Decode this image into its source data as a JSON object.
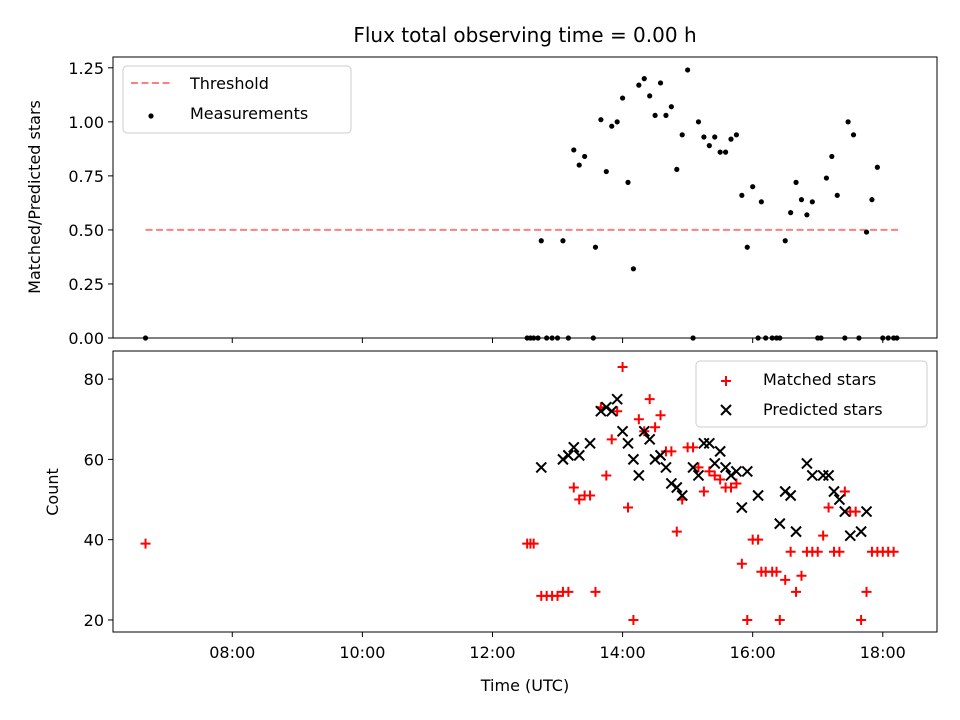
{
  "chart_data": [
    {
      "type": "scatter",
      "title": "Flux total observing time = 0.00 h",
      "xlabel": "",
      "ylabel": "Matched/Predicted stars",
      "ylim": [
        0,
        1.3
      ],
      "yticks": [
        "0.00",
        "0.25",
        "0.50",
        "0.75",
        "1.00",
        "1.25"
      ],
      "legend": {
        "position": "top-left",
        "entries": [
          "Threshold",
          "Measurements"
        ]
      },
      "threshold": {
        "name": "Threshold",
        "y": 0.5,
        "x_start": "06:40",
        "x_end": "18:15",
        "color": "#ff7f7f",
        "style": "dashed"
      },
      "series": [
        {
          "name": "Measurements",
          "color": "#000000",
          "marker": "dot",
          "points": [
            [
              "06:40",
              0.0
            ],
            [
              "12:32",
              0.0
            ],
            [
              "12:35",
              0.0
            ],
            [
              "12:38",
              0.0
            ],
            [
              "12:42",
              0.0
            ],
            [
              "12:45",
              0.45
            ],
            [
              "12:50",
              0.0
            ],
            [
              "12:55",
              0.0
            ],
            [
              "13:00",
              0.0
            ],
            [
              "13:05",
              0.45
            ],
            [
              "13:10",
              0.0
            ],
            [
              "13:15",
              0.87
            ],
            [
              "13:20",
              0.8
            ],
            [
              "13:25",
              0.84
            ],
            [
              "13:33",
              0.0
            ],
            [
              "13:35",
              0.42
            ],
            [
              "13:40",
              1.01
            ],
            [
              "13:45",
              0.77
            ],
            [
              "13:50",
              0.98
            ],
            [
              "13:55",
              1.0
            ],
            [
              "14:00",
              1.11
            ],
            [
              "14:05",
              0.72
            ],
            [
              "14:10",
              0.32
            ],
            [
              "14:15",
              1.17
            ],
            [
              "14:20",
              1.2
            ],
            [
              "14:25",
              1.12
            ],
            [
              "14:30",
              1.03
            ],
            [
              "14:35",
              1.18
            ],
            [
              "14:40",
              1.03
            ],
            [
              "14:45",
              1.07
            ],
            [
              "14:50",
              0.78
            ],
            [
              "14:55",
              0.94
            ],
            [
              "15:00",
              1.24
            ],
            [
              "15:05",
              0.0
            ],
            [
              "15:10",
              1.0
            ],
            [
              "15:15",
              0.93
            ],
            [
              "15:20",
              0.89
            ],
            [
              "15:25",
              0.93
            ],
            [
              "15:30",
              0.86
            ],
            [
              "15:35",
              0.86
            ],
            [
              "15:40",
              0.92
            ],
            [
              "15:45",
              0.94
            ],
            [
              "15:50",
              0.66
            ],
            [
              "15:55",
              0.42
            ],
            [
              "16:00",
              0.7
            ],
            [
              "16:05",
              0.0
            ],
            [
              "16:08",
              0.63
            ],
            [
              "16:12",
              0.0
            ],
            [
              "16:18",
              0.0
            ],
            [
              "16:22",
              0.0
            ],
            [
              "16:25",
              0.0
            ],
            [
              "16:30",
              0.45
            ],
            [
              "16:35",
              0.58
            ],
            [
              "16:40",
              0.72
            ],
            [
              "16:45",
              0.64
            ],
            [
              "16:50",
              0.57
            ],
            [
              "16:55",
              0.63
            ],
            [
              "17:00",
              0.0
            ],
            [
              "17:03",
              0.0
            ],
            [
              "17:08",
              0.74
            ],
            [
              "17:13",
              0.84
            ],
            [
              "17:18",
              0.66
            ],
            [
              "17:25",
              0.0
            ],
            [
              "17:28",
              1.0
            ],
            [
              "17:33",
              0.94
            ],
            [
              "17:38",
              0.0
            ],
            [
              "17:45",
              0.49
            ],
            [
              "17:50",
              0.64
            ],
            [
              "17:55",
              0.79
            ],
            [
              "18:00",
              0.0
            ],
            [
              "18:05",
              0.0
            ],
            [
              "18:10",
              0.0
            ],
            [
              "18:13",
              0.0
            ]
          ]
        }
      ]
    },
    {
      "type": "scatter",
      "title": "",
      "xlabel": "Time (UTC)",
      "ylabel": "Count",
      "ylim": [
        17,
        87
      ],
      "yticks": [
        "20",
        "40",
        "60",
        "80"
      ],
      "xticks": [
        "08:00",
        "10:00",
        "12:00",
        "14:00",
        "16:00",
        "18:00"
      ],
      "legend": {
        "position": "top-right",
        "entries": [
          "Matched stars",
          "Predicted stars"
        ]
      },
      "series": [
        {
          "name": "Matched stars",
          "color": "#ff0000",
          "marker": "plus",
          "points": [
            [
              "06:40",
              39
            ],
            [
              "12:32",
              39
            ],
            [
              "12:35",
              39
            ],
            [
              "12:38",
              39
            ],
            [
              "12:45",
              26
            ],
            [
              "12:50",
              26
            ],
            [
              "12:55",
              26
            ],
            [
              "13:00",
              26
            ],
            [
              "13:05",
              27
            ],
            [
              "13:10",
              27
            ],
            [
              "13:15",
              53
            ],
            [
              "13:20",
              50
            ],
            [
              "13:25",
              51
            ],
            [
              "13:30",
              51
            ],
            [
              "13:35",
              27
            ],
            [
              "13:40",
              73
            ],
            [
              "13:45",
              56
            ],
            [
              "13:50",
              65
            ],
            [
              "13:55",
              72
            ],
            [
              "14:00",
              83
            ],
            [
              "14:05",
              48
            ],
            [
              "14:10",
              20
            ],
            [
              "14:15",
              70
            ],
            [
              "14:20",
              67
            ],
            [
              "14:25",
              75
            ],
            [
              "14:30",
              68
            ],
            [
              "14:35",
              71
            ],
            [
              "14:40",
              62
            ],
            [
              "14:45",
              62
            ],
            [
              "14:50",
              42
            ],
            [
              "14:55",
              50
            ],
            [
              "15:00",
              63
            ],
            [
              "15:05",
              63
            ],
            [
              "15:10",
              58
            ],
            [
              "15:15",
              52
            ],
            [
              "15:20",
              57
            ],
            [
              "15:25",
              56
            ],
            [
              "15:30",
              55
            ],
            [
              "15:35",
              53
            ],
            [
              "15:40",
              53
            ],
            [
              "15:45",
              54
            ],
            [
              "15:50",
              34
            ],
            [
              "15:55",
              20
            ],
            [
              "16:00",
              40
            ],
            [
              "16:05",
              40
            ],
            [
              "16:08",
              32
            ],
            [
              "16:12",
              32
            ],
            [
              "16:18",
              32
            ],
            [
              "16:22",
              32
            ],
            [
              "16:25",
              20
            ],
            [
              "16:30",
              30
            ],
            [
              "16:35",
              37
            ],
            [
              "16:40",
              27
            ],
            [
              "16:45",
              31
            ],
            [
              "16:50",
              37
            ],
            [
              "16:55",
              37
            ],
            [
              "17:00",
              37
            ],
            [
              "17:05",
              41
            ],
            [
              "17:10",
              48
            ],
            [
              "17:15",
              37
            ],
            [
              "17:20",
              37
            ],
            [
              "17:25",
              52
            ],
            [
              "17:30",
              47
            ],
            [
              "17:35",
              47
            ],
            [
              "17:40",
              20
            ],
            [
              "17:45",
              27
            ],
            [
              "17:50",
              37
            ],
            [
              "17:55",
              37
            ],
            [
              "18:00",
              37
            ],
            [
              "18:05",
              37
            ],
            [
              "18:10",
              37
            ]
          ]
        },
        {
          "name": "Predicted stars",
          "color": "#000000",
          "marker": "x",
          "points": [
            [
              "12:45",
              58
            ],
            [
              "13:05",
              60
            ],
            [
              "13:10",
              61
            ],
            [
              "13:15",
              63
            ],
            [
              "13:20",
              61
            ],
            [
              "13:30",
              64
            ],
            [
              "13:40",
              72
            ],
            [
              "13:45",
              73
            ],
            [
              "13:50",
              72
            ],
            [
              "13:55",
              75
            ],
            [
              "14:00",
              67
            ],
            [
              "14:05",
              64
            ],
            [
              "14:10",
              60
            ],
            [
              "14:15",
              56
            ],
            [
              "14:20",
              67
            ],
            [
              "14:25",
              65
            ],
            [
              "14:30",
              60
            ],
            [
              "14:35",
              61
            ],
            [
              "14:40",
              58
            ],
            [
              "14:45",
              54
            ],
            [
              "14:50",
              53
            ],
            [
              "14:55",
              51
            ],
            [
              "15:05",
              58
            ],
            [
              "15:10",
              56
            ],
            [
              "15:15",
              64
            ],
            [
              "15:20",
              64
            ],
            [
              "15:25",
              59
            ],
            [
              "15:30",
              62
            ],
            [
              "15:35",
              58
            ],
            [
              "15:40",
              56
            ],
            [
              "15:45",
              57
            ],
            [
              "15:50",
              48
            ],
            [
              "15:55",
              57
            ],
            [
              "16:05",
              51
            ],
            [
              "16:25",
              44
            ],
            [
              "16:30",
              52
            ],
            [
              "16:35",
              51
            ],
            [
              "16:40",
              42
            ],
            [
              "16:50",
              59
            ],
            [
              "16:55",
              56
            ],
            [
              "17:05",
              56
            ],
            [
              "17:10",
              56
            ],
            [
              "17:15",
              52
            ],
            [
              "17:20",
              50
            ],
            [
              "17:25",
              47
            ],
            [
              "17:30",
              41
            ],
            [
              "17:40",
              42
            ],
            [
              "17:45",
              47
            ]
          ]
        }
      ]
    }
  ]
}
